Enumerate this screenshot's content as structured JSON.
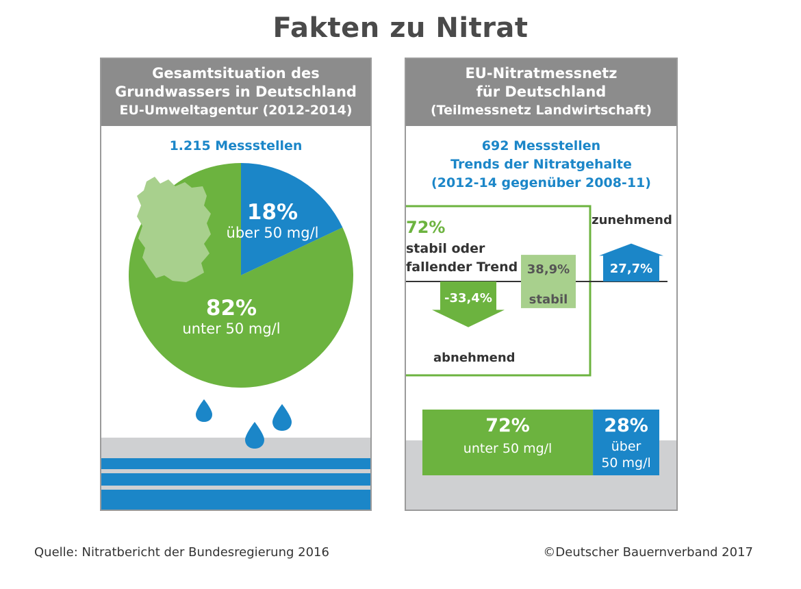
{
  "page": {
    "title": "Fakten zu Nitrat"
  },
  "left_panel": {
    "header_line1": "Gesamtsituation des",
    "header_line2": "Grundwassers in Deutschland",
    "header_line3": "EU-Umweltagentur (2012-2014)",
    "count_label": "1.215 Messstellen"
  },
  "right_panel": {
    "header_line1": "EU-Nitratmessnetz",
    "header_line2": "für Deutschland",
    "header_line3": "(Teilmessnetz Landwirtschaft)",
    "info_line1": "692 Messstellen",
    "info_line2": "Trends der Nitratgehalte",
    "info_line3": "(2012-14 gegenüber 2008-11)",
    "group_pct": "72%",
    "group_label_line1": "stabil oder",
    "group_label_line2": "fallender Trend",
    "label_decreasing": "abnehmend",
    "label_stable": "stabil",
    "label_increasing": "zunehmend"
  },
  "footer": {
    "source": "Quelle: Nitratbericht der Bundesregierung 2016",
    "copyright": "©Deutscher Bauernverband 2017"
  },
  "colors": {
    "green": "#6cb33f",
    "light_green": "#a8d08d",
    "blue": "#1b86c8",
    "grey_header": "#8c8c8c",
    "grey_band": "#cfd0d2"
  },
  "chart_data": [
    {
      "type": "pie",
      "slices": [
        {
          "name": "über 50 mg/l",
          "value": 18,
          "label": "18%",
          "color": "#1b86c8"
        },
        {
          "name": "unter 50 mg/l",
          "value": 82,
          "label": "82%",
          "color": "#6cb33f"
        }
      ]
    },
    {
      "type": "bar",
      "categories": [
        "abnehmend",
        "stabil",
        "zunehmend"
      ],
      "values": [
        -33.4,
        38.9,
        27.7
      ],
      "labels": [
        "-33,4%",
        "38,9%",
        "27,7%"
      ]
    },
    {
      "type": "bar",
      "categories": [
        "unter 50 mg/l",
        "über 50 mg/l"
      ],
      "values": [
        72,
        28
      ],
      "labels": [
        "72%",
        "28%"
      ]
    }
  ]
}
